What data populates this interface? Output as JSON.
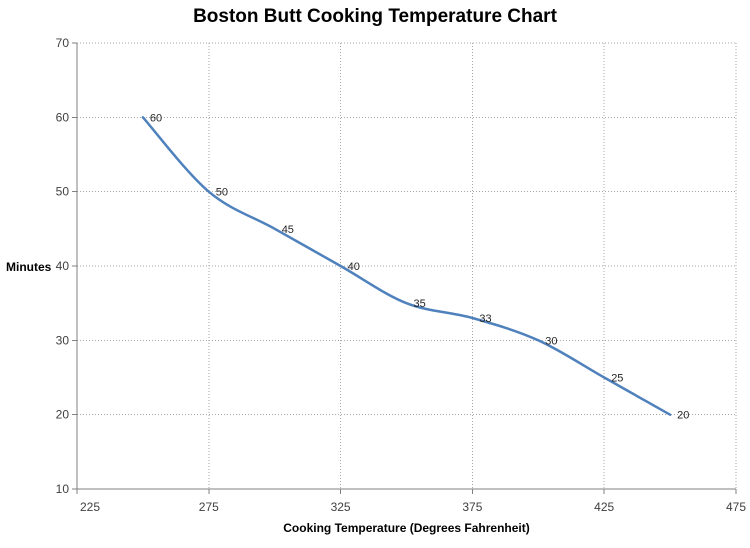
{
  "chart_data": {
    "type": "line",
    "title": "Boston Butt Cooking Temperature Chart",
    "xlabel": "Cooking Temperature (Degrees Fahrenheit)",
    "ylabel": "Minutes",
    "x": [
      250,
      275,
      300,
      325,
      350,
      375,
      400,
      425,
      450
    ],
    "y": [
      60,
      50,
      45,
      40,
      35,
      33,
      30,
      25,
      20
    ],
    "data_labels": [
      "60",
      "50",
      "45",
      "40",
      "35",
      "33",
      "30",
      "25",
      "20"
    ],
    "xlim": [
      225,
      475
    ],
    "xtick_step": 50,
    "ylim": [
      10,
      70
    ],
    "ytick_step": 10,
    "grid": "dotted-major-both",
    "legend": "none",
    "smooth": true,
    "colors": {
      "line": "#4F81BD",
      "gridline": "#A6A6A6",
      "axis": "#808080",
      "tick_label": "#3F3F3F",
      "data_label": "#262626",
      "title": "#000000",
      "background": "#FFFFFF"
    }
  }
}
